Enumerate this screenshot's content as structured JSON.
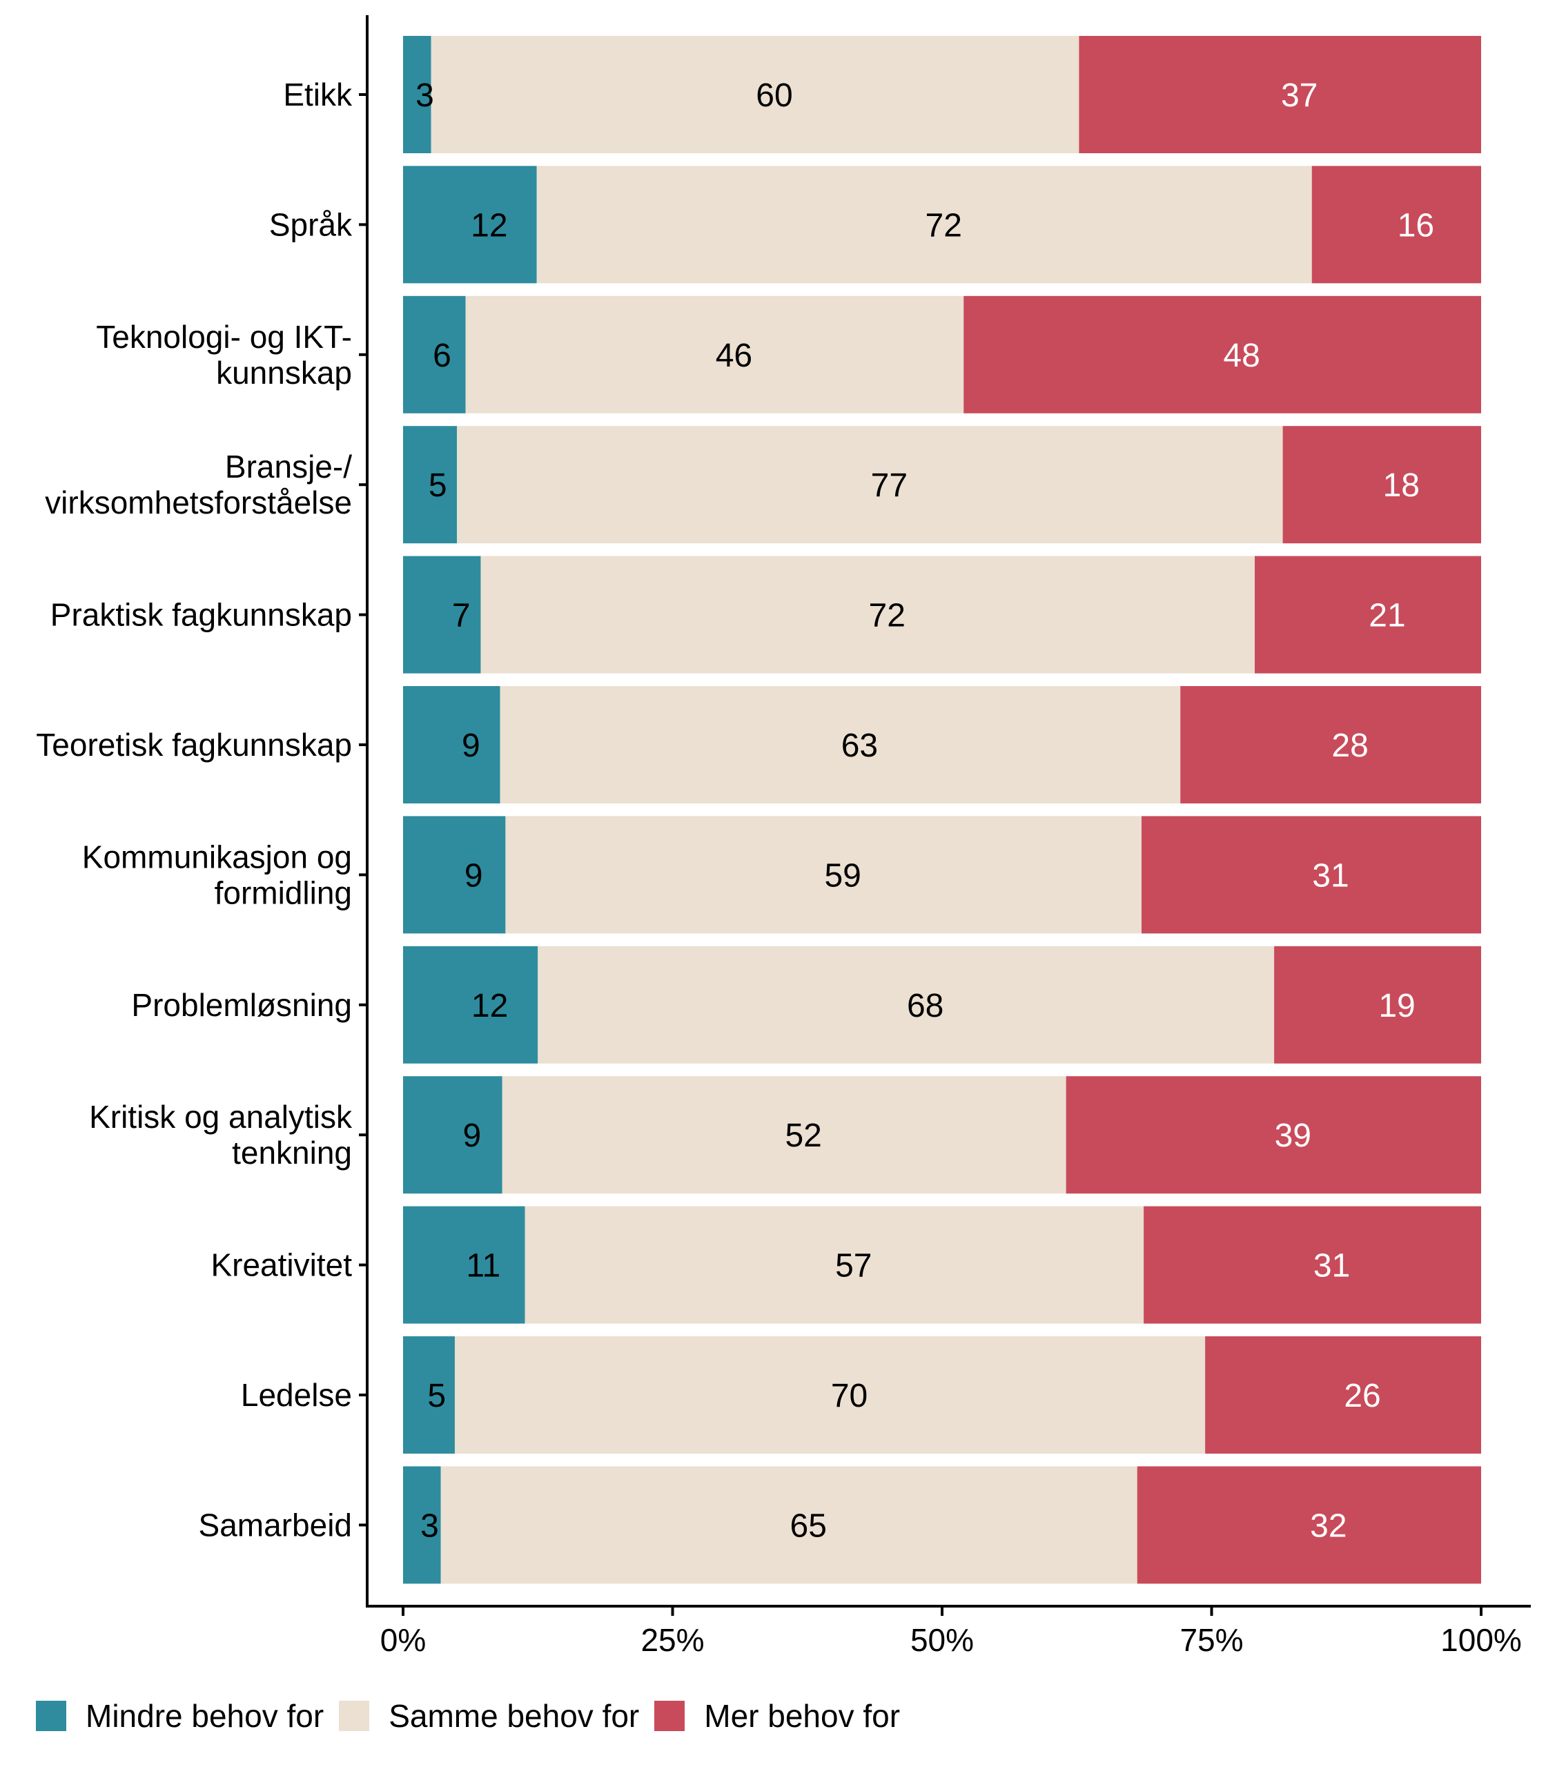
{
  "chart_data": {
    "type": "bar",
    "orientation": "horizontal",
    "stacked": true,
    "normalized": true,
    "title": "",
    "xlabel": "",
    "ylabel": "",
    "xlim": [
      0,
      100
    ],
    "x_ticks": [
      "0%",
      "25%",
      "50%",
      "75%",
      "100%"
    ],
    "x_tick_values": [
      0,
      25,
      50,
      75,
      100
    ],
    "grid": false,
    "legend_position": "bottom-left",
    "categories": [
      "Etikk",
      "Språk",
      "Teknologi- og IKT-\nkunnskap",
      "Bransje-/\nvirksomhetsforståelse",
      "Praktisk fagkunnskap",
      "Teoretisk fagkunnskap",
      "Kommunikasjon og\nformidling",
      "Problemløsning",
      "Kritisk og analytisk\ntenkning",
      "Kreativitet",
      "Ledelse",
      "Samarbeid"
    ],
    "series": [
      {
        "name": "Mindre behov for",
        "color": "#2E8C9E",
        "label_color": "#000000",
        "labels": [
          3,
          12,
          6,
          5,
          7,
          9,
          9,
          12,
          9,
          11,
          5,
          3
        ],
        "values": [
          2.6,
          12.4,
          5.8,
          5.0,
          7.2,
          9.0,
          9.5,
          12.5,
          9.2,
          11.3,
          4.8,
          3.5
        ]
      },
      {
        "name": "Samme behov for",
        "color": "#EBE0D1",
        "label_color": "#000000",
        "labels": [
          60,
          72,
          46,
          77,
          72,
          63,
          59,
          68,
          52,
          57,
          70,
          65
        ],
        "values": [
          60.1,
          71.9,
          46.2,
          76.6,
          71.8,
          63.1,
          59.0,
          68.3,
          52.3,
          57.4,
          69.6,
          64.6
        ]
      },
      {
        "name": "Mer behov for",
        "color": "#C84B5B",
        "label_color": "#FFFFFF",
        "labels": [
          37,
          16,
          48,
          18,
          21,
          28,
          31,
          19,
          39,
          31,
          26,
          32
        ],
        "values": [
          37.3,
          15.7,
          48.0,
          18.4,
          21.0,
          27.9,
          31.5,
          19.2,
          38.5,
          31.3,
          25.6,
          31.9
        ]
      }
    ]
  }
}
